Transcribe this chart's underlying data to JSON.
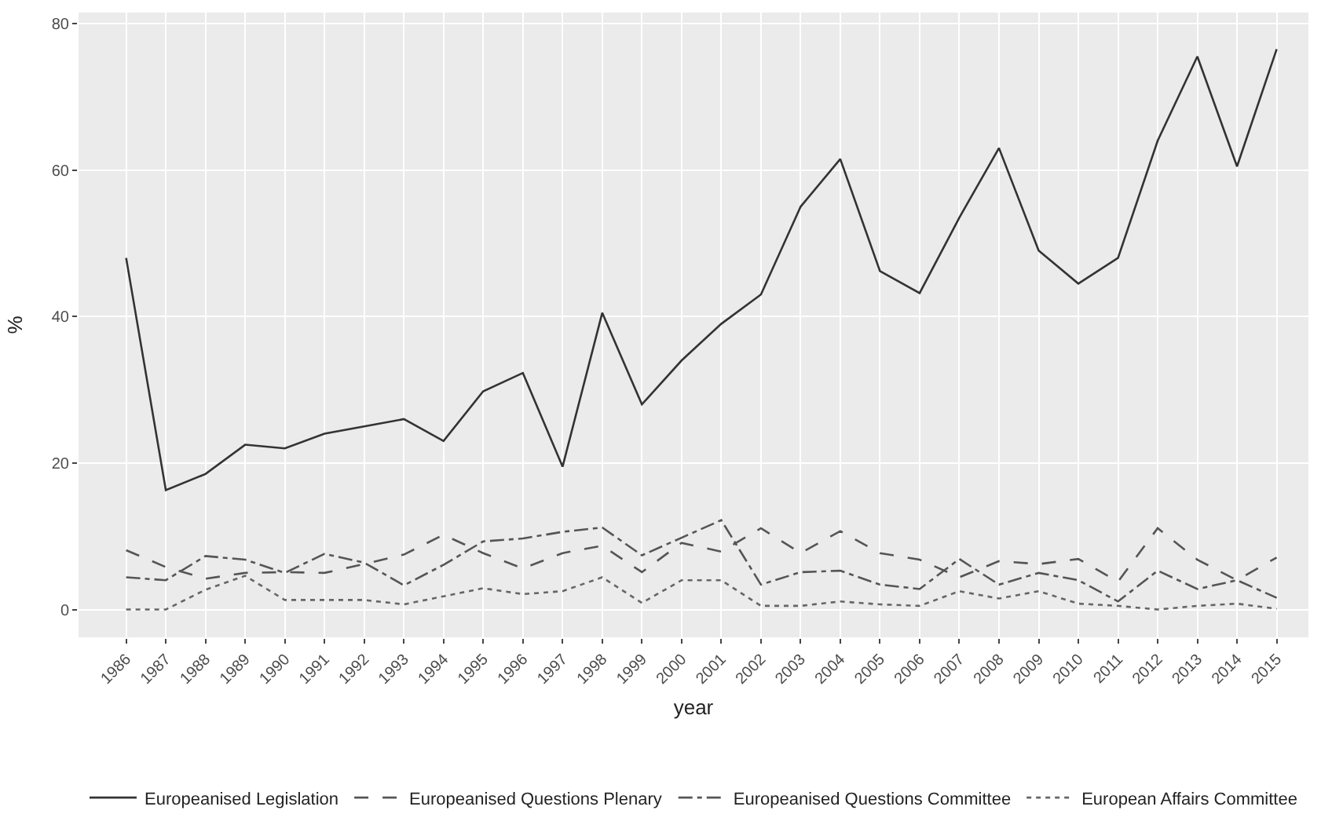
{
  "chart_data": {
    "type": "line",
    "xlabel": "year",
    "ylabel": "%",
    "categories": [
      "1986",
      "1987",
      "1988",
      "1989",
      "1990",
      "1991",
      "1992",
      "1993",
      "1994",
      "1995",
      "1996",
      "1997",
      "1998",
      "1999",
      "2000",
      "2001",
      "2002",
      "2003",
      "2004",
      "2005",
      "2006",
      "2007",
      "2008",
      "2009",
      "2010",
      "2011",
      "2012",
      "2013",
      "2014",
      "2015"
    ],
    "series": [
      {
        "name": "Europeanised Legislation",
        "color": "#333333",
        "line_style": "solid",
        "values": [
          48,
          16.3,
          18.5,
          22.5,
          22,
          24,
          25,
          26,
          23,
          29.8,
          32.3,
          19.5,
          40.5,
          28,
          34,
          39,
          43,
          55,
          61.5,
          46.2,
          43.2,
          53.5,
          63,
          49,
          44.5,
          48,
          64,
          75.5,
          60.5,
          76.5
        ]
      },
      {
        "name": "Europeanised Questions Plenary",
        "color": "#555555",
        "line_style": "dashed",
        "values": [
          8.1,
          5.8,
          4.2,
          5,
          5.1,
          5,
          6.2,
          7.5,
          10.2,
          7.7,
          5.6,
          7.7,
          8.7,
          5.1,
          9.1,
          7.9,
          11.1,
          7.7,
          10.7,
          7.7,
          6.8,
          4.4,
          6.6,
          6.2,
          6.9,
          3.8,
          11.1,
          6.8,
          4,
          7.1
        ]
      },
      {
        "name": "Europeanised Questions Committee",
        "color": "#555555",
        "line_style": "dashdot",
        "values": [
          4.4,
          4,
          7.3,
          6.8,
          5,
          7.6,
          6.4,
          3.3,
          6.1,
          9.3,
          9.7,
          10.6,
          11.2,
          7.4,
          9.8,
          12.2,
          3.4,
          5.1,
          5.3,
          3.4,
          2.8,
          6.9,
          3.4,
          5,
          4,
          1.1,
          5.3,
          2.8,
          4,
          1.6
        ]
      },
      {
        "name": "European Affairs Committee",
        "color": "#666666",
        "line_style": "dotted",
        "values": [
          0,
          0,
          2.7,
          4.6,
          1.3,
          1.3,
          1.3,
          0.7,
          1.8,
          2.9,
          2.1,
          2.5,
          4.4,
          0.9,
          4,
          4,
          0.5,
          0.5,
          1.1,
          0.7,
          0.5,
          2.5,
          1.5,
          2.5,
          0.8,
          0.5,
          0,
          0.5,
          0.8,
          0.1
        ]
      }
    ],
    "ylim": [
      -3.8,
      81.5
    ],
    "yticks": [
      0,
      20,
      40,
      60,
      80
    ],
    "grid": true,
    "legend": "bottom"
  }
}
